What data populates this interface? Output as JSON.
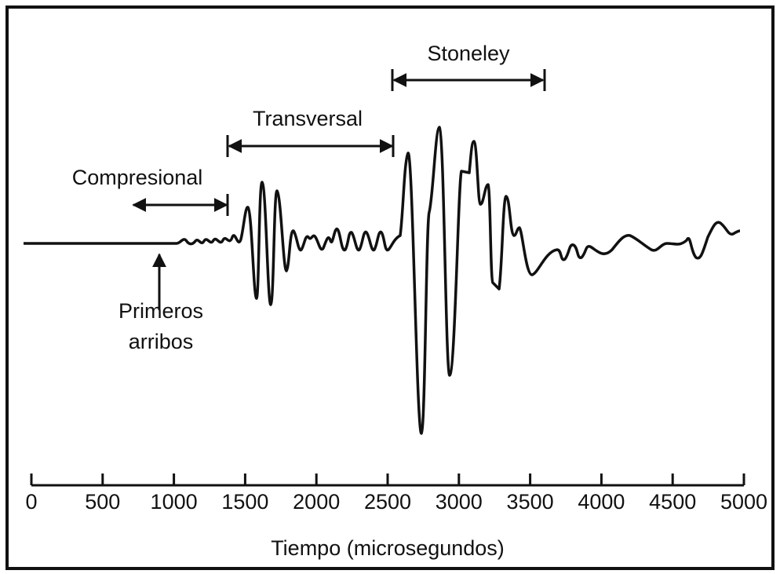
{
  "labels": {
    "compresional": "Compresional",
    "transversal": "Transversal",
    "stoneley": "Stoneley",
    "primeros": "Primeros",
    "arribos": "arribos"
  },
  "axis": {
    "title": "Tiempo (microsegundos)",
    "ticks": [
      0,
      500,
      1000,
      1500,
      2000,
      2500,
      3000,
      3500,
      4000,
      4500,
      5000
    ],
    "range": [
      0,
      5000
    ]
  }
}
